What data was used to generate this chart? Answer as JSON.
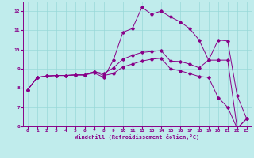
{
  "xlabel": "Windchill (Refroidissement éolien,°C)",
  "bg_color": "#c0ecec",
  "line_color": "#880088",
  "grid_color": "#98d8d8",
  "text_color": "#880088",
  "xlim": [
    -0.5,
    23.5
  ],
  "ylim": [
    6.0,
    12.5
  ],
  "xticks": [
    0,
    1,
    2,
    3,
    4,
    5,
    6,
    7,
    8,
    9,
    10,
    11,
    12,
    13,
    14,
    15,
    16,
    17,
    18,
    19,
    20,
    21,
    22,
    23
  ],
  "yticks": [
    6,
    7,
    8,
    9,
    10,
    11,
    12
  ],
  "line1_x": [
    0,
    1,
    2,
    3,
    4,
    5,
    6,
    7,
    8,
    9,
    10,
    11,
    12,
    13,
    14,
    15,
    16,
    17,
    18,
    19,
    20,
    21,
    22,
    23
  ],
  "line1_y": [
    7.9,
    8.55,
    8.62,
    8.65,
    8.65,
    8.68,
    8.68,
    8.78,
    8.55,
    9.45,
    10.9,
    11.1,
    12.2,
    11.85,
    12.0,
    11.7,
    11.45,
    11.1,
    10.5,
    9.45,
    10.5,
    10.45,
    7.6,
    6.4
  ],
  "line2_x": [
    0,
    1,
    2,
    3,
    4,
    5,
    6,
    7,
    8,
    9,
    10,
    11,
    12,
    13,
    14,
    15,
    16,
    17,
    18,
    19,
    20,
    21,
    22,
    23
  ],
  "line2_y": [
    7.9,
    8.55,
    8.62,
    8.65,
    8.65,
    8.68,
    8.68,
    8.85,
    8.75,
    9.05,
    9.5,
    9.7,
    9.85,
    9.9,
    9.95,
    9.4,
    9.38,
    9.25,
    9.05,
    9.45,
    9.45,
    9.45,
    5.9,
    6.4
  ],
  "line3_x": [
    0,
    1,
    2,
    3,
    4,
    5,
    6,
    7,
    8,
    9,
    10,
    11,
    12,
    13,
    14,
    15,
    16,
    17,
    18,
    19,
    20,
    21,
    22,
    23
  ],
  "line3_y": [
    7.9,
    8.55,
    8.62,
    8.65,
    8.65,
    8.68,
    8.68,
    8.85,
    8.65,
    8.75,
    9.1,
    9.25,
    9.4,
    9.5,
    9.55,
    9.0,
    8.9,
    8.75,
    8.6,
    8.55,
    7.5,
    7.0,
    5.9,
    6.4
  ]
}
